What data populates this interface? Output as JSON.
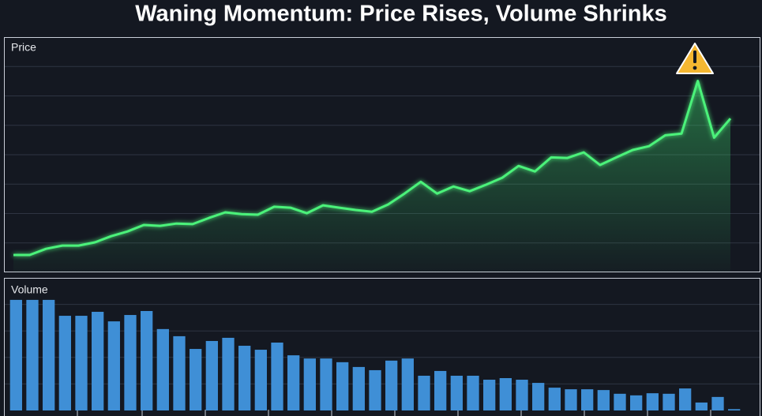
{
  "chart_data": [
    {
      "type": "line",
      "title": "Waning Momentum: Price Rises, Volume Shrinks",
      "panel_label": "Price",
      "color": "#4cf27a",
      "values": [
        0.59,
        0.59,
        0.8,
        0.91,
        0.91,
        1.02,
        1.23,
        1.39,
        1.61,
        1.58,
        1.66,
        1.64,
        1.85,
        2.04,
        1.98,
        1.96,
        2.23,
        2.2,
        2.01,
        2.28,
        2.2,
        2.12,
        2.06,
        2.31,
        2.68,
        3.08,
        2.68,
        2.92,
        2.76,
        2.98,
        3.22,
        3.62,
        3.43,
        3.91,
        3.89,
        4.08,
        3.65,
        3.91,
        4.16,
        4.29,
        4.66,
        4.72,
        6.51,
        4.58,
        5.23
      ],
      "ylim": [
        0,
        8
      ],
      "gridlines": [
        1,
        2,
        3,
        4,
        5,
        6,
        7
      ]
    },
    {
      "type": "bar",
      "panel_label": "Volume",
      "color": "#3f8fd6",
      "values": [
        4.17,
        4.17,
        4.17,
        3.57,
        3.57,
        3.72,
        3.36,
        3.6,
        3.75,
        3.07,
        2.8,
        2.32,
        2.62,
        2.74,
        2.44,
        2.29,
        2.56,
        2.08,
        1.96,
        1.96,
        1.82,
        1.64,
        1.52,
        1.88,
        1.96,
        1.31,
        1.49,
        1.31,
        1.31,
        1.16,
        1.22,
        1.16,
        1.04,
        0.86,
        0.8,
        0.8,
        0.77,
        0.63,
        0.57,
        0.65,
        0.63,
        0.83,
        0.3,
        0.51,
        0.05
      ],
      "ylim": [
        0,
        5
      ],
      "gridlines": [
        1,
        2,
        3,
        4
      ]
    }
  ]
}
